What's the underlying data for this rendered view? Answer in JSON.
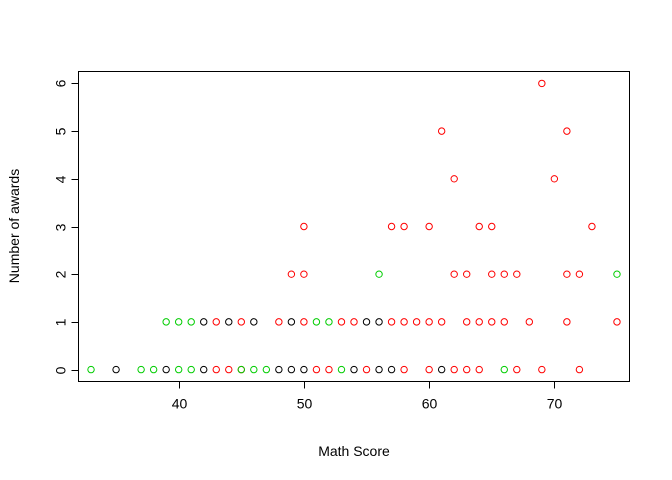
{
  "chart_data": {
    "type": "scatter",
    "title": "",
    "xlabel": "Math Score",
    "ylabel": "Number of awards",
    "xlim": [
      32,
      76
    ],
    "ylim": [
      -0.25,
      6.25
    ],
    "xticks": [
      40,
      50,
      60,
      70
    ],
    "yticks": [
      0,
      1,
      2,
      3,
      4,
      5,
      6
    ],
    "grid": false,
    "legend": null,
    "series": [
      {
        "color": "#000000",
        "points": [
          [
            35,
            0
          ],
          [
            39,
            0
          ],
          [
            42,
            0
          ],
          [
            48,
            0
          ],
          [
            49,
            0
          ],
          [
            50,
            0
          ],
          [
            54,
            0
          ],
          [
            56,
            0
          ],
          [
            57,
            0
          ],
          [
            61,
            0
          ],
          [
            42,
            1
          ],
          [
            44,
            1
          ],
          [
            46,
            1
          ],
          [
            49,
            1
          ],
          [
            55,
            1
          ],
          [
            56,
            1
          ]
        ]
      },
      {
        "color": "#ff0000",
        "points": [
          [
            43,
            0
          ],
          [
            44,
            0
          ],
          [
            45,
            0
          ],
          [
            51,
            0
          ],
          [
            52,
            0
          ],
          [
            55,
            0
          ],
          [
            58,
            0
          ],
          [
            60,
            0
          ],
          [
            62,
            0
          ],
          [
            63,
            0
          ],
          [
            64,
            0
          ],
          [
            67,
            0
          ],
          [
            69,
            0
          ],
          [
            72,
            0
          ],
          [
            43,
            1
          ],
          [
            45,
            1
          ],
          [
            48,
            1
          ],
          [
            50,
            1
          ],
          [
            53,
            1
          ],
          [
            54,
            1
          ],
          [
            57,
            1
          ],
          [
            58,
            1
          ],
          [
            59,
            1
          ],
          [
            60,
            1
          ],
          [
            61,
            1
          ],
          [
            63,
            1
          ],
          [
            64,
            1
          ],
          [
            65,
            1
          ],
          [
            66,
            1
          ],
          [
            68,
            1
          ],
          [
            71,
            1
          ],
          [
            75,
            1
          ],
          [
            49,
            2
          ],
          [
            50,
            2
          ],
          [
            62,
            2
          ],
          [
            63,
            2
          ],
          [
            65,
            2
          ],
          [
            66,
            2
          ],
          [
            67,
            2
          ],
          [
            71,
            2
          ],
          [
            72,
            2
          ],
          [
            50,
            3
          ],
          [
            57,
            3
          ],
          [
            58,
            3
          ],
          [
            60,
            3
          ],
          [
            64,
            3
          ],
          [
            65,
            3
          ],
          [
            73,
            3
          ],
          [
            62,
            4
          ],
          [
            70,
            4
          ],
          [
            61,
            5
          ],
          [
            71,
            5
          ],
          [
            69,
            6
          ]
        ]
      },
      {
        "color": "#00cd00",
        "points": [
          [
            33,
            0
          ],
          [
            37,
            0
          ],
          [
            38,
            0
          ],
          [
            40,
            0
          ],
          [
            41,
            0
          ],
          [
            45,
            0
          ],
          [
            46,
            0
          ],
          [
            47,
            0
          ],
          [
            53,
            0
          ],
          [
            66,
            0
          ],
          [
            39,
            1
          ],
          [
            40,
            1
          ],
          [
            41,
            1
          ],
          [
            51,
            1
          ],
          [
            52,
            1
          ],
          [
            56,
            2
          ],
          [
            75,
            2
          ]
        ]
      }
    ]
  }
}
